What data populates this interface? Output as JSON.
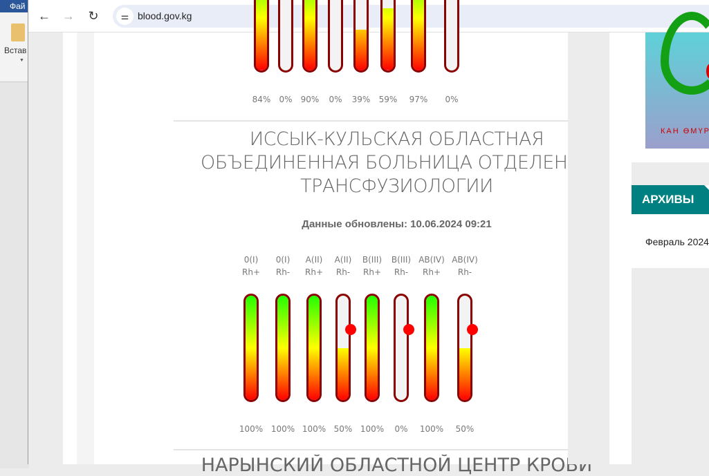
{
  "word": {
    "tab": "Фай",
    "paste": "Встав"
  },
  "browser": {
    "url": "blood.gov.kg"
  },
  "prev_section": {
    "percents": [
      "84%",
      "0%",
      "90%",
      "0%",
      "39%",
      "59%",
      "97%",
      "0%"
    ],
    "levels": [
      84,
      0,
      90,
      0,
      39,
      59,
      97,
      0
    ]
  },
  "section": {
    "title": "ИССЫК-КУЛЬСКАЯ ОБЛАСТНАЯ ОБЪЕДИНЕННАЯ БОЛЬНИЦА ОТДЕЛЕНИЕ ТРАНСФУЗИОЛОГИИ",
    "updated": "Данные обновлены: 10.06.2024 09:21",
    "groups": [
      {
        "group": "0(I)",
        "rh": "Rh+",
        "percent": "100%",
        "level": 100
      },
      {
        "group": "0(I)",
        "rh": "Rh-",
        "percent": "100%",
        "level": 100
      },
      {
        "group": "A(II)",
        "rh": "Rh+",
        "percent": "100%",
        "level": 100
      },
      {
        "group": "A(II)",
        "rh": "Rh-",
        "percent": "50%",
        "level": 50
      },
      {
        "group": "B(III)",
        "rh": "Rh+",
        "percent": "100%",
        "level": 100
      },
      {
        "group": "B(III)",
        "rh": "Rh-",
        "percent": "0%",
        "level": 0
      },
      {
        "group": "AB(IV)",
        "rh": "Rh+",
        "percent": "100%",
        "level": 100
      },
      {
        "group": "AB(IV)",
        "rh": "Rh-",
        "percent": "50%",
        "level": 50
      }
    ]
  },
  "next_section": {
    "title": "НАРЫНСКИЙ ОБЛАСТНОЙ ЦЕНТР КРОВИ"
  },
  "sidebar": {
    "logo_text": "КАН ӨМҮР",
    "archives_title": "АРХИВЫ",
    "archive_item": "Февраль 2024"
  },
  "colors": {
    "tube_border": "#8b0000",
    "accent": "#008080",
    "low_marker": "#ff0000"
  }
}
